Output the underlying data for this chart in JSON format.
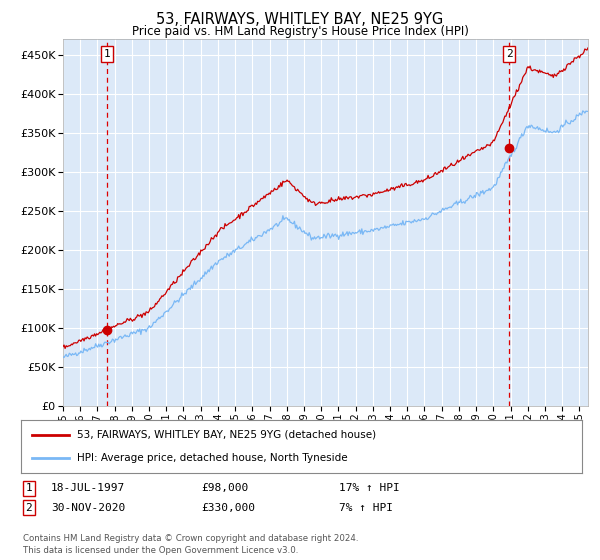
{
  "title": "53, FAIRWAYS, WHITLEY BAY, NE25 9YG",
  "subtitle": "Price paid vs. HM Land Registry's House Price Index (HPI)",
  "ylim": [
    0,
    470000
  ],
  "yticks": [
    0,
    50000,
    100000,
    150000,
    200000,
    250000,
    300000,
    350000,
    400000,
    450000
  ],
  "background_color": "#dce9f8",
  "grid_color": "#ffffff",
  "line_color_hpi": "#7ab8f5",
  "line_color_price": "#cc0000",
  "marker_color": "#cc0000",
  "marker_size": 6,
  "sale1_date": 1997.54,
  "sale1_value": 98000,
  "sale1_label": "1",
  "sale2_date": 2020.92,
  "sale2_value": 330000,
  "sale2_label": "2",
  "legend_line1": "53, FAIRWAYS, WHITLEY BAY, NE25 9YG (detached house)",
  "legend_line2": "HPI: Average price, detached house, North Tyneside",
  "note1_label": "1",
  "note1_date": "18-JUL-1997",
  "note1_price": "£98,000",
  "note1_hpi": "17% ↑ HPI",
  "note2_label": "2",
  "note2_date": "30-NOV-2020",
  "note2_price": "£330,000",
  "note2_hpi": "7% ↑ HPI",
  "copyright": "Contains HM Land Registry data © Crown copyright and database right 2024.\nThis data is licensed under the Open Government Licence v3.0.",
  "xmin": 1995.0,
  "xmax": 2025.5
}
